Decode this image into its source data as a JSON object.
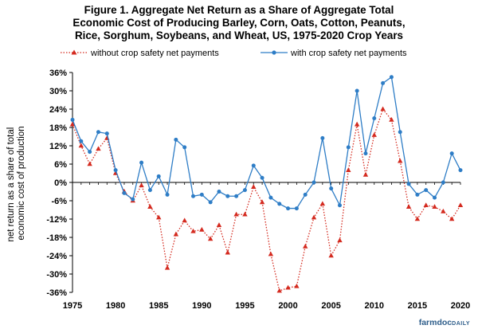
{
  "title_lines": [
    "Figure  1. Aggregate  Net Return as a Share of Aggregate  Total",
    "Economic Cost of Producing  Barley,  Corn, Oats, Cotton, Peanuts,",
    "Rice,  Sorghum,  Soybeans,  and Wheat,  US,  1975-2020  Crop Years"
  ],
  "brand": {
    "part1": "farmdoc",
    "part2": "DAILY"
  },
  "colors": {
    "without": "#d42a1f",
    "with": "#2e7dc6"
  },
  "chart_data": {
    "type": "line",
    "ylabel_lines": [
      "net return as a share of total",
      "economic cost of production"
    ],
    "xlabel": "",
    "xlim": [
      1975,
      2020
    ],
    "ylim": [
      -36,
      36
    ],
    "x_ticks": [
      1975,
      1980,
      1985,
      1990,
      1995,
      2000,
      2005,
      2010,
      2015,
      2020
    ],
    "y_ticks": [
      36,
      30,
      24,
      18,
      12,
      6,
      0,
      -6,
      -12,
      -18,
      -24,
      -30,
      -36
    ],
    "y_tick_labels": [
      "36%",
      "30%",
      "24%",
      "18%",
      "12%",
      "6%",
      "0%",
      "-6%",
      "-12%",
      "-18%",
      "-24%",
      "-30%",
      "-36%"
    ],
    "x": [
      1975,
      1976,
      1977,
      1978,
      1979,
      1980,
      1981,
      1982,
      1983,
      1984,
      1985,
      1986,
      1987,
      1988,
      1989,
      1990,
      1991,
      1992,
      1993,
      1994,
      1995,
      1996,
      1997,
      1998,
      1999,
      2000,
      2001,
      2002,
      2003,
      2004,
      2005,
      2006,
      2007,
      2008,
      2009,
      2010,
      2011,
      2012,
      2013,
      2014,
      2015,
      2016,
      2017,
      2018,
      2019,
      2020
    ],
    "grid": false,
    "legend_position": "top",
    "series": [
      {
        "name": "without crop safety net payments",
        "style": "dotted-triangle",
        "values": [
          19,
          12,
          6,
          11,
          14.5,
          3,
          -3,
          -6,
          -1,
          -8,
          -11.5,
          -28,
          -17,
          -12.5,
          -16,
          -15.5,
          -18.5,
          -14,
          -23,
          -10.5,
          -10.5,
          -1.5,
          -6.5,
          -23.5,
          -35.5,
          -34.5,
          -34,
          -21,
          -11.5,
          -7,
          -24,
          -19,
          4,
          19,
          2.5,
          15.5,
          24,
          20.5,
          7,
          -8,
          -12,
          -7.5,
          -8,
          -9.5,
          -12,
          -7.5
        ]
      },
      {
        "name": "with crop safety net payments",
        "style": "solid-circle",
        "values": [
          20.5,
          13.5,
          10,
          16.5,
          16,
          4,
          -3.5,
          -5.5,
          6.5,
          -2.5,
          2,
          -4,
          14,
          11.5,
          -4.5,
          -4,
          -6.5,
          -3,
          -4.5,
          -4.5,
          -2.5,
          5.5,
          1.5,
          -5,
          -7,
          -8.5,
          -8.5,
          -4,
          0,
          14.5,
          -2,
          -7.5,
          11.5,
          30,
          9.5,
          21,
          32.5,
          34.5,
          16.5,
          -0.5,
          -4,
          -2.5,
          -5,
          0,
          9.5,
          4
        ]
      }
    ]
  }
}
